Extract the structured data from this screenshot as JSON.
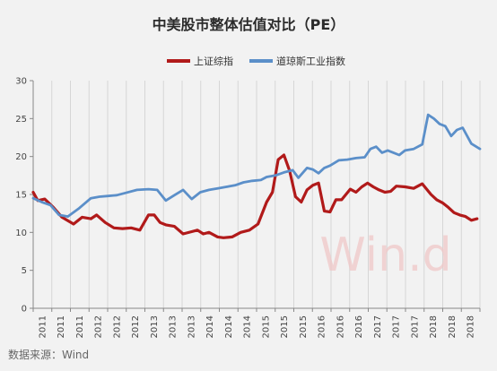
{
  "chart_data": {
    "type": "line",
    "title": "中美股市整体估值对比（PE）",
    "source": "数据来源：Wind",
    "watermark": "Win.d",
    "ylim": [
      0,
      30
    ],
    "yticks": [
      0,
      5,
      10,
      15,
      20,
      25,
      30
    ],
    "xlim": [
      2011.0,
      2018.75
    ],
    "grid": "vertical",
    "legend_position": "top-center",
    "x_tick_labels": [
      "2011",
      "2011",
      "2011",
      "2012",
      "2012",
      "2012",
      "2013",
      "2013",
      "2013",
      "2014",
      "2014",
      "2014",
      "2015",
      "2015",
      "2015",
      "2016",
      "2016",
      "2016",
      "2017",
      "2017",
      "2017",
      "2018",
      "2018",
      "2018"
    ],
    "series": [
      {
        "name": "上证综指",
        "color": "#b11a1a",
        "x": [
          2011.0,
          2011.08,
          2011.2,
          2011.35,
          2011.5,
          2011.7,
          2011.85,
          2012.0,
          2012.1,
          2012.25,
          2012.4,
          2012.55,
          2012.7,
          2012.85,
          2013.0,
          2013.1,
          2013.2,
          2013.3,
          2013.45,
          2013.6,
          2013.75,
          2013.85,
          2013.95,
          2014.05,
          2014.2,
          2014.3,
          2014.45,
          2014.6,
          2014.75,
          2014.9,
          2015.05,
          2015.15,
          2015.25,
          2015.35,
          2015.45,
          2015.55,
          2015.65,
          2015.75,
          2015.85,
          2015.95,
          2016.05,
          2016.15,
          2016.25,
          2016.35,
          2016.5,
          2016.6,
          2016.7,
          2016.8,
          2016.9,
          2017.0,
          2017.1,
          2017.2,
          2017.3,
          2017.45,
          2017.6,
          2017.75,
          2017.9,
          2018.0,
          2018.1,
          2018.2,
          2018.3,
          2018.4,
          2018.5,
          2018.6,
          2018.7
        ],
        "values": [
          15.3,
          14.2,
          14.4,
          13.3,
          12.0,
          11.1,
          12.0,
          11.8,
          12.3,
          11.3,
          10.6,
          10.5,
          10.6,
          10.3,
          12.3,
          12.3,
          11.3,
          11.0,
          10.8,
          9.8,
          10.1,
          10.3,
          9.8,
          10.0,
          9.4,
          9.3,
          9.4,
          10.0,
          10.3,
          11.1,
          14.0,
          15.3,
          19.6,
          20.2,
          18.1,
          14.7,
          14.0,
          15.6,
          16.2,
          16.5,
          12.8,
          12.7,
          14.3,
          14.3,
          15.7,
          15.3,
          16.0,
          16.5,
          16.0,
          15.6,
          15.3,
          15.4,
          16.1,
          16.0,
          15.8,
          16.4,
          15.0,
          14.3,
          13.9,
          13.3,
          12.6,
          12.3,
          12.1,
          11.6,
          11.8
        ]
      },
      {
        "name": "道琼斯工业指数",
        "color": "#5b8fc9",
        "x": [
          2011.0,
          2011.15,
          2011.3,
          2011.45,
          2011.6,
          2011.8,
          2012.0,
          2012.15,
          2012.3,
          2012.45,
          2012.6,
          2012.8,
          2013.0,
          2013.15,
          2013.3,
          2013.45,
          2013.6,
          2013.75,
          2013.9,
          2014.05,
          2014.2,
          2014.35,
          2014.5,
          2014.65,
          2014.8,
          2014.95,
          2015.05,
          2015.2,
          2015.35,
          2015.5,
          2015.6,
          2015.75,
          2015.85,
          2015.95,
          2016.05,
          2016.15,
          2016.3,
          2016.45,
          2016.6,
          2016.75,
          2016.85,
          2016.95,
          2017.05,
          2017.15,
          2017.25,
          2017.35,
          2017.45,
          2017.6,
          2017.75,
          2017.85,
          2017.95,
          2018.05,
          2018.15,
          2018.25,
          2018.35,
          2018.45,
          2018.6,
          2018.75
        ],
        "values": [
          14.5,
          14.0,
          13.6,
          12.3,
          12.1,
          13.2,
          14.5,
          14.7,
          14.8,
          14.9,
          15.2,
          15.6,
          15.7,
          15.6,
          14.2,
          14.9,
          15.6,
          14.4,
          15.3,
          15.6,
          15.8,
          16.0,
          16.2,
          16.6,
          16.8,
          16.9,
          17.3,
          17.5,
          17.9,
          18.2,
          17.2,
          18.5,
          18.3,
          17.8,
          18.5,
          18.8,
          19.5,
          19.6,
          19.8,
          19.9,
          21.0,
          21.3,
          20.5,
          20.8,
          20.5,
          20.2,
          20.8,
          21.0,
          21.6,
          25.5,
          25.0,
          24.3,
          24.0,
          22.7,
          23.5,
          23.8,
          21.7,
          21.0
        ]
      }
    ]
  }
}
